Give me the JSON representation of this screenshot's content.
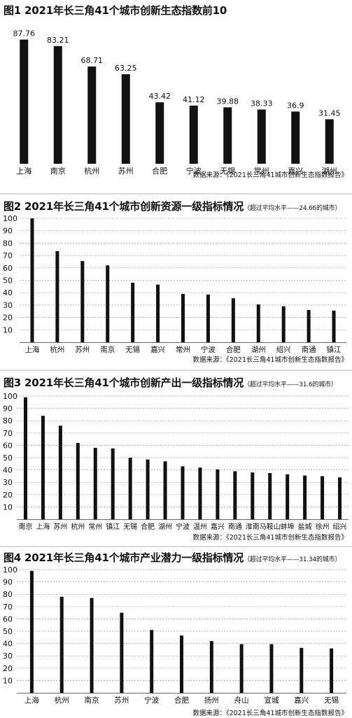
{
  "source": "数据来源：《2021长三角41城市创新生态指数报告》",
  "chart_data": [
    {
      "type": "bar",
      "title": "图1  2021年长三角41个城市创新生态指数前10",
      "note": "",
      "categories": [
        "上海",
        "南京",
        "杭州",
        "苏州",
        "合肥",
        "宁波",
        "无锡",
        "常州",
        "嘉兴",
        "湖州"
      ],
      "values": [
        87.76,
        83.21,
        68.71,
        63.25,
        43.42,
        41.12,
        39.88,
        38.33,
        36.9,
        31.45
      ],
      "value_labels": [
        "87.76",
        "83.21",
        "68.71",
        "63.25",
        "43.42",
        "41.12",
        "39.88",
        "38.33",
        "36.9",
        "31.45"
      ],
      "ylim": [
        0,
        92
      ],
      "yticks": [],
      "grid": false
    },
    {
      "type": "bar",
      "title": "图2  2021年长三角41个城市创新资源一级指标情况",
      "note": "（超过平均水平——24.66的城市）",
      "categories": [
        "上海",
        "杭州",
        "苏州",
        "南京",
        "无锡",
        "嘉兴",
        "常州",
        "宁波",
        "合肥",
        "湖州",
        "绍兴",
        "南通",
        "镇江"
      ],
      "values": [
        100,
        73.5,
        65.5,
        62,
        48,
        46.5,
        39,
        38.5,
        35.5,
        30.5,
        29,
        26,
        25.5
      ],
      "ylim": [
        0,
        100
      ],
      "yticks": [
        "10",
        "20",
        "30",
        "40",
        "50",
        "60",
        "70",
        "80",
        "90",
        "100"
      ],
      "grid": true
    },
    {
      "type": "bar",
      "title": "图3  2021年长三角41个城市创新产出一级指标情况",
      "note": "（超过平均水平——31.6的城市）",
      "categories": [
        "南京",
        "上海",
        "苏州",
        "杭州",
        "常州",
        "镇江",
        "无锡",
        "合肥",
        "湖州",
        "宁波",
        "温州",
        "嘉兴",
        "南通",
        "淮南",
        "马鞍山",
        "蚌埠",
        "盐城",
        "徐州",
        "绍兴"
      ],
      "values": [
        99,
        84,
        76,
        62,
        58,
        57.5,
        50,
        48.5,
        47,
        43,
        42,
        40.5,
        39,
        38,
        37.5,
        36.5,
        35.5,
        35,
        34
      ],
      "ylim": [
        0,
        100
      ],
      "yticks": [
        "10",
        "20",
        "30",
        "40",
        "50",
        "60",
        "70",
        "80",
        "90",
        "100"
      ],
      "grid": true
    },
    {
      "type": "bar",
      "title": "图4  2021年长三角41个城市产业潜力一级指标情况",
      "note": "（超过平均水平——31.34的城市）",
      "categories": [
        "上海",
        "杭州",
        "南京",
        "苏州",
        "宁波",
        "合肥",
        "扬州",
        "舟山",
        "宣城",
        "嘉兴",
        "无锡"
      ],
      "values": [
        99,
        78,
        77,
        65,
        51,
        46.5,
        42,
        39.5,
        39.5,
        36.5,
        36
      ],
      "ylim": [
        0,
        100
      ],
      "yticks": [
        "10",
        "20",
        "30",
        "40",
        "50",
        "60",
        "70",
        "80",
        "90",
        "100"
      ],
      "grid": true
    }
  ]
}
